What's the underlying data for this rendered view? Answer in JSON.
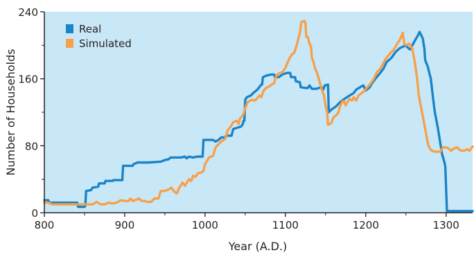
{
  "chart_data": {
    "type": "line",
    "title": "",
    "xlabel": "Year (A.D.)",
    "ylabel": "Number of Households",
    "xlim": [
      800,
      1333
    ],
    "ylim": [
      0,
      240
    ],
    "xticks": [
      800,
      900,
      1000,
      1100,
      1200,
      1300
    ],
    "yticks": [
      0,
      80,
      160,
      240
    ],
    "grid": false,
    "legend_position": "top-left",
    "background_color": "#c9e8f7",
    "series": [
      {
        "name": "Real",
        "color": "#1a84c7",
        "points": [
          [
            800,
            15
          ],
          [
            805,
            15
          ],
          [
            806,
            12
          ],
          [
            830,
            12
          ],
          [
            841,
            12
          ],
          [
            842,
            7
          ],
          [
            850,
            7
          ],
          [
            851,
            8
          ],
          [
            852,
            26
          ],
          [
            858,
            27
          ],
          [
            860,
            30
          ],
          [
            867,
            31
          ],
          [
            868,
            35
          ],
          [
            875,
            35
          ],
          [
            876,
            38
          ],
          [
            885,
            38
          ],
          [
            886,
            39
          ],
          [
            897,
            39
          ],
          [
            898,
            56
          ],
          [
            910,
            56
          ],
          [
            911,
            58
          ],
          [
            916,
            60
          ],
          [
            925,
            60
          ],
          [
            930,
            60
          ],
          [
            945,
            61
          ],
          [
            950,
            63
          ],
          [
            955,
            64
          ],
          [
            957,
            66
          ],
          [
            970,
            66
          ],
          [
            975,
            67
          ],
          [
            977,
            65
          ],
          [
            980,
            67
          ],
          [
            985,
            66
          ],
          [
            990,
            67
          ],
          [
            997,
            67
          ],
          [
            998,
            87
          ],
          [
            1010,
            87
          ],
          [
            1013,
            85
          ],
          [
            1015,
            86
          ],
          [
            1018,
            88
          ],
          [
            1020,
            90
          ],
          [
            1025,
            90
          ],
          [
            1026,
            92
          ],
          [
            1033,
            92
          ],
          [
            1035,
            100
          ],
          [
            1045,
            103
          ],
          [
            1047,
            106
          ],
          [
            1048,
            110
          ],
          [
            1049,
            110
          ],
          [
            1050,
            135
          ],
          [
            1052,
            138
          ],
          [
            1057,
            140
          ],
          [
            1060,
            143
          ],
          [
            1065,
            147
          ],
          [
            1070,
            153
          ],
          [
            1071,
            153
          ],
          [
            1072,
            162
          ],
          [
            1077,
            164
          ],
          [
            1082,
            165
          ],
          [
            1086,
            165
          ],
          [
            1087,
            162
          ],
          [
            1092,
            162
          ],
          [
            1096,
            165
          ],
          [
            1102,
            167
          ],
          [
            1106,
            167
          ],
          [
            1107,
            162
          ],
          [
            1112,
            162
          ],
          [
            1113,
            157
          ],
          [
            1118,
            156
          ],
          [
            1119,
            150
          ],
          [
            1125,
            149
          ],
          [
            1128,
            149
          ],
          [
            1130,
            152
          ],
          [
            1133,
            148
          ],
          [
            1138,
            148
          ],
          [
            1145,
            150
          ],
          [
            1147,
            147
          ],
          [
            1149,
            152
          ],
          [
            1153,
            153
          ],
          [
            1154,
            120
          ],
          [
            1157,
            123
          ],
          [
            1163,
            127
          ],
          [
            1168,
            132
          ],
          [
            1175,
            137
          ],
          [
            1180,
            140
          ],
          [
            1185,
            143
          ],
          [
            1188,
            147
          ],
          [
            1193,
            150
          ],
          [
            1197,
            152
          ],
          [
            1200,
            146
          ],
          [
            1205,
            150
          ],
          [
            1208,
            155
          ],
          [
            1212,
            160
          ],
          [
            1218,
            167
          ],
          [
            1222,
            172
          ],
          [
            1226,
            180
          ],
          [
            1232,
            185
          ],
          [
            1237,
            192
          ],
          [
            1243,
            197
          ],
          [
            1246,
            198
          ],
          [
            1249,
            200
          ],
          [
            1255,
            195
          ],
          [
            1258,
            200
          ],
          [
            1262,
            207
          ],
          [
            1265,
            212
          ],
          [
            1267,
            216
          ],
          [
            1271,
            208
          ],
          [
            1273,
            196
          ],
          [
            1274,
            182
          ],
          [
            1277,
            175
          ],
          [
            1281,
            160
          ],
          [
            1284,
            135
          ],
          [
            1286,
            120
          ],
          [
            1290,
            100
          ],
          [
            1293,
            82
          ],
          [
            1295,
            70
          ],
          [
            1298,
            60
          ],
          [
            1299,
            55
          ],
          [
            1300,
            30
          ],
          [
            1301,
            2
          ],
          [
            1333,
            2
          ]
        ]
      },
      {
        "name": "Simulated",
        "color": "#f7a04b",
        "points": [
          [
            800,
            12
          ],
          [
            805,
            12
          ],
          [
            810,
            10
          ],
          [
            820,
            10
          ],
          [
            830,
            10
          ],
          [
            842,
            10
          ],
          [
            848,
            10
          ],
          [
            852,
            10
          ],
          [
            860,
            10
          ],
          [
            865,
            13
          ],
          [
            870,
            10
          ],
          [
            875,
            10
          ],
          [
            880,
            12
          ],
          [
            885,
            11
          ],
          [
            890,
            12
          ],
          [
            895,
            15
          ],
          [
            900,
            14
          ],
          [
            905,
            14
          ],
          [
            907,
            17
          ],
          [
            910,
            14
          ],
          [
            913,
            15
          ],
          [
            918,
            17
          ],
          [
            921,
            14
          ],
          [
            925,
            14
          ],
          [
            928,
            13
          ],
          [
            933,
            13
          ],
          [
            937,
            17
          ],
          [
            942,
            17
          ],
          [
            945,
            26
          ],
          [
            950,
            26
          ],
          [
            955,
            28
          ],
          [
            958,
            30
          ],
          [
            962,
            25
          ],
          [
            965,
            23
          ],
          [
            968,
            30
          ],
          [
            972,
            36
          ],
          [
            975,
            32
          ],
          [
            978,
            37
          ],
          [
            980,
            40
          ],
          [
            983,
            38
          ],
          [
            985,
            44
          ],
          [
            988,
            43
          ],
          [
            991,
            47
          ],
          [
            995,
            48
          ],
          [
            998,
            50
          ],
          [
            1000,
            58
          ],
          [
            1005,
            66
          ],
          [
            1010,
            68
          ],
          [
            1013,
            78
          ],
          [
            1015,
            80
          ],
          [
            1018,
            83
          ],
          [
            1020,
            85
          ],
          [
            1025,
            88
          ],
          [
            1028,
            98
          ],
          [
            1032,
            103
          ],
          [
            1035,
            108
          ],
          [
            1039,
            110
          ],
          [
            1042,
            106
          ],
          [
            1043,
            112
          ],
          [
            1046,
            115
          ],
          [
            1048,
            118
          ],
          [
            1050,
            125
          ],
          [
            1053,
            132
          ],
          [
            1058,
            135
          ],
          [
            1062,
            134
          ],
          [
            1065,
            137
          ],
          [
            1068,
            140
          ],
          [
            1070,
            138
          ],
          [
            1073,
            146
          ],
          [
            1076,
            149
          ],
          [
            1080,
            151
          ],
          [
            1083,
            153
          ],
          [
            1086,
            155
          ],
          [
            1088,
            162
          ],
          [
            1090,
            165
          ],
          [
            1093,
            167
          ],
          [
            1095,
            167
          ],
          [
            1098,
            170
          ],
          [
            1100,
            173
          ],
          [
            1103,
            180
          ],
          [
            1106,
            186
          ],
          [
            1109,
            190
          ],
          [
            1111,
            191
          ],
          [
            1114,
            200
          ],
          [
            1118,
            215
          ],
          [
            1120,
            228
          ],
          [
            1124,
            229
          ],
          [
            1125,
            226
          ],
          [
            1126,
            210
          ],
          [
            1128,
            210
          ],
          [
            1130,
            202
          ],
          [
            1132,
            198
          ],
          [
            1133,
            185
          ],
          [
            1135,
            180
          ],
          [
            1137,
            172
          ],
          [
            1139,
            168
          ],
          [
            1141,
            162
          ],
          [
            1143,
            155
          ],
          [
            1145,
            148
          ],
          [
            1148,
            140
          ],
          [
            1150,
            128
          ],
          [
            1152,
            120
          ],
          [
            1153,
            105
          ],
          [
            1157,
            107
          ],
          [
            1160,
            114
          ],
          [
            1164,
            117
          ],
          [
            1166,
            120
          ],
          [
            1168,
            127
          ],
          [
            1171,
            133
          ],
          [
            1173,
            133
          ],
          [
            1175,
            128
          ],
          [
            1177,
            132
          ],
          [
            1180,
            136
          ],
          [
            1183,
            134
          ],
          [
            1185,
            138
          ],
          [
            1188,
            134
          ],
          [
            1191,
            140
          ],
          [
            1195,
            143
          ],
          [
            1198,
            145
          ],
          [
            1201,
            149
          ],
          [
            1205,
            153
          ],
          [
            1210,
            160
          ],
          [
            1214,
            168
          ],
          [
            1218,
            172
          ],
          [
            1221,
            177
          ],
          [
            1225,
            184
          ],
          [
            1230,
            190
          ],
          [
            1235,
            195
          ],
          [
            1238,
            200
          ],
          [
            1242,
            206
          ],
          [
            1245,
            212
          ],
          [
            1246,
            215
          ],
          [
            1248,
            202
          ],
          [
            1250,
            200
          ],
          [
            1254,
            202
          ],
          [
            1258,
            196
          ],
          [
            1261,
            180
          ],
          [
            1264,
            160
          ],
          [
            1266,
            140
          ],
          [
            1270,
            120
          ],
          [
            1274,
            100
          ],
          [
            1278,
            80
          ],
          [
            1281,
            75
          ],
          [
            1285,
            73
          ],
          [
            1290,
            73
          ],
          [
            1293,
            73
          ],
          [
            1296,
            78
          ],
          [
            1300,
            78
          ],
          [
            1303,
            77
          ],
          [
            1306,
            74
          ],
          [
            1310,
            77
          ],
          [
            1314,
            78
          ],
          [
            1317,
            75
          ],
          [
            1320,
            74
          ],
          [
            1323,
            74
          ],
          [
            1326,
            76
          ],
          [
            1329,
            74
          ],
          [
            1333,
            79
          ]
        ]
      }
    ]
  }
}
